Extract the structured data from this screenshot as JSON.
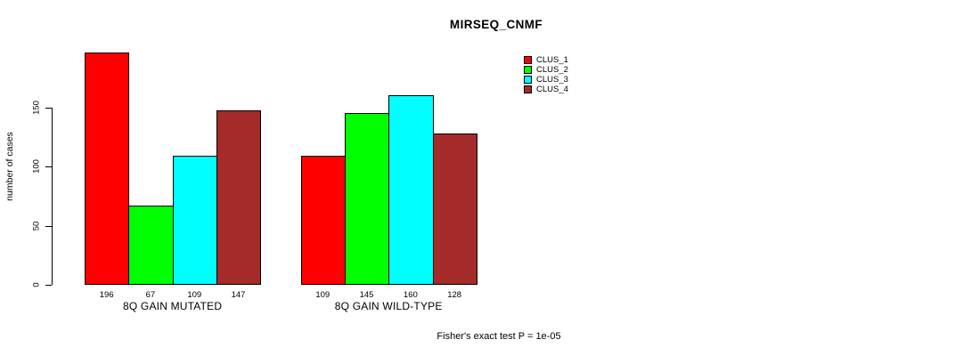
{
  "chart_data": {
    "type": "bar",
    "title": "MIRSEQ_CNMF",
    "ylabel": "number of cases",
    "ylim": [
      0,
      196
    ],
    "yticks": [
      0,
      50,
      100,
      150
    ],
    "categories": [
      "8Q GAIN MUTATED",
      "8Q GAIN WILD-TYPE"
    ],
    "series": [
      {
        "name": "CLUS_1",
        "color": "#FF0000",
        "values": [
          196,
          109
        ]
      },
      {
        "name": "CLUS_2",
        "color": "#00FF00",
        "values": [
          67,
          145
        ]
      },
      {
        "name": "CLUS_3",
        "color": "#00FFFF",
        "values": [
          109,
          160
        ]
      },
      {
        "name": "CLUS_4",
        "color": "#A52A2A",
        "values": [
          147,
          128
        ]
      }
    ],
    "show_bar_values": true,
    "legend_position": "top-right",
    "grid": false,
    "annotations": {
      "footnote": "Fisher's exact test P = 1e-05"
    }
  }
}
